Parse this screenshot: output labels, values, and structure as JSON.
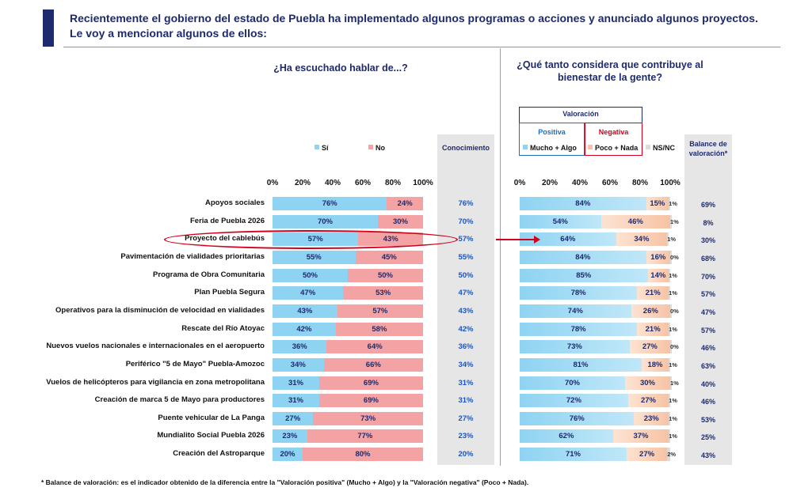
{
  "header": {
    "title": "Recientemente el gobierno del estado de Puebla ha implementado algunos programas o acciones y anunciado algunos proyectos. Le voy a mencionar algunos de ellos:"
  },
  "footnote": "* Balance de valoración: es el indicador obtenido de la diferencia entre la \"Valoración positiva\" (Mucho + Algo) y la \"Valoración negativa\" (Poco + Nada).",
  "colors": {
    "si": "#8fd3f2",
    "no": "#f3a3a3",
    "positiva": "#8fd3f2",
    "negativa": "#f6c3a4",
    "nsnc": "#dcdcdc",
    "navy": "#1d2a6e",
    "highlight": "#d0021b"
  },
  "chart_data": [
    {
      "type": "bar",
      "orientation": "horizontal",
      "stacked": true,
      "title": "¿Ha escuchado hablar de...?",
      "xlim": [
        0,
        100
      ],
      "ticks": [
        "0%",
        "20%",
        "40%",
        "60%",
        "80%",
        "100%"
      ],
      "legend": [
        "Sí",
        "No"
      ],
      "extra_column": "Conocimiento",
      "categories": [
        "Apoyos sociales",
        "Feria de Puebla 2026",
        "Proyecto del cablebús",
        "Pavimentación de vialidades prioritarias",
        "Programa de Obra Comunitaria",
        "Plan Puebla Segura",
        "Operativos para la disminución de velocidad en vialidades",
        "Rescate del Río Atoyac",
        "Nuevos vuelos nacionales e internacionales en el aeropuerto",
        "Periférico \"5 de Mayo\" Puebla-Amozoc",
        "Vuelos de helicópteros para vigilancia en zona metropolitana",
        "Creación de marca 5 de Mayo para productores",
        "Puente vehicular de La Panga",
        "Mundialito Social Puebla 2026",
        "Creación del Astroparque"
      ],
      "highlight": "Proyecto del cablebús",
      "series": [
        {
          "name": "Sí",
          "values": [
            76,
            70,
            57,
            55,
            50,
            47,
            43,
            42,
            36,
            34,
            31,
            31,
            27,
            23,
            20
          ]
        },
        {
          "name": "No",
          "values": [
            24,
            30,
            43,
            45,
            50,
            53,
            57,
            58,
            64,
            66,
            69,
            69,
            73,
            77,
            80
          ]
        }
      ],
      "conocimiento": [
        76,
        70,
        57,
        55,
        50,
        47,
        43,
        42,
        36,
        34,
        31,
        31,
        27,
        23,
        20
      ]
    },
    {
      "type": "bar",
      "orientation": "horizontal",
      "stacked": true,
      "title": "¿Qué tanto considera que contribuye al bienestar de la gente?",
      "xlim": [
        0,
        100
      ],
      "ticks": [
        "0%",
        "20%",
        "40%",
        "60%",
        "80%",
        "100%"
      ],
      "legend_box_title": "Valoración",
      "legend_groups": {
        "positiva": "Positiva",
        "negativa": "Negativa"
      },
      "legend": [
        "Mucho + Algo",
        "Poco + Nada",
        "NS/NC"
      ],
      "extra_column": "Balance de valoración*",
      "series": [
        {
          "name": "Mucho + Algo",
          "values": [
            84,
            54,
            64,
            84,
            85,
            78,
            74,
            78,
            73,
            81,
            70,
            72,
            76,
            62,
            71
          ]
        },
        {
          "name": "Poco + Nada",
          "values": [
            15,
            46,
            34,
            16,
            14,
            21,
            26,
            21,
            27,
            18,
            30,
            27,
            23,
            37,
            27
          ]
        },
        {
          "name": "NS/NC",
          "values": [
            1,
            1,
            1,
            0,
            1,
            1,
            0,
            1,
            0,
            1,
            1,
            1,
            1,
            1,
            2
          ]
        }
      ],
      "balance": [
        69,
        8,
        30,
        68,
        70,
        57,
        47,
        57,
        46,
        63,
        40,
        46,
        53,
        25,
        43
      ]
    }
  ]
}
